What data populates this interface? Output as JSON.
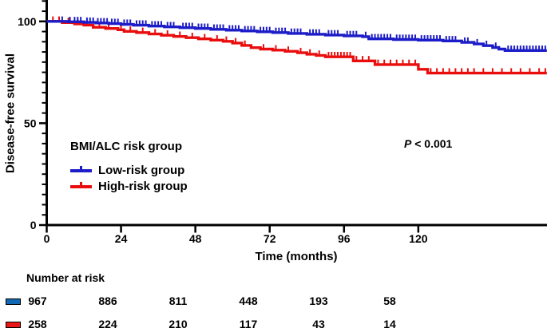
{
  "chart_data": {
    "type": "line",
    "subtype": "kaplan-meier-step",
    "step_mode": "post",
    "title": "",
    "xlabel": "Time (months)",
    "ylabel": "Disease-free survival",
    "xlim": [
      0,
      161.5
    ],
    "ylim": [
      0,
      110
    ],
    "x_ticks": [
      0,
      24,
      48,
      72,
      96,
      120
    ],
    "y_ticks": [
      0,
      50,
      100
    ],
    "y_minor_tick_step": 5,
    "grid": false,
    "legend_title": "BMI/ALC risk group",
    "legend_position": "inside-lower-left",
    "p_label": {
      "italic": "P",
      "text": " < 0.001"
    },
    "series": [
      {
        "name": "Low-risk group",
        "color": "#1c1cc8",
        "steps": [
          [
            0,
            100
          ],
          [
            7,
            99.8
          ],
          [
            12,
            99.5
          ],
          [
            16,
            99.2
          ],
          [
            20,
            98.9
          ],
          [
            24,
            98.5
          ],
          [
            28,
            98.1
          ],
          [
            33,
            97.7
          ],
          [
            38,
            97.3
          ],
          [
            43,
            96.9
          ],
          [
            48,
            96.5
          ],
          [
            53,
            96.1
          ],
          [
            58,
            95.7
          ],
          [
            63,
            95.3
          ],
          [
            68,
            94.9
          ],
          [
            73,
            94.5
          ],
          [
            78,
            94.1
          ],
          [
            84,
            93.7
          ],
          [
            90,
            93.3
          ],
          [
            96,
            92.9
          ],
          [
            102,
            92.5
          ],
          [
            104,
            91.4
          ],
          [
            112,
            91.1
          ],
          [
            120,
            90.8
          ],
          [
            128,
            90.4
          ],
          [
            134,
            89.7
          ],
          [
            138,
            88.9
          ],
          [
            141,
            88.1
          ],
          [
            144,
            87.2
          ],
          [
            146,
            86.4
          ],
          [
            148,
            85.7
          ]
        ],
        "censor_times": [
          5,
          7.5,
          9,
          10,
          11,
          13,
          14,
          15,
          16.5,
          17.5,
          18.5,
          19.5,
          21,
          22,
          23,
          25,
          26,
          27,
          29,
          30,
          31,
          32,
          34,
          35,
          36,
          37,
          39,
          40,
          41,
          44,
          45,
          46,
          47,
          49,
          50,
          51,
          52,
          54,
          55,
          56,
          57,
          59,
          60,
          61,
          62,
          64,
          65,
          66,
          67,
          69,
          70,
          71,
          72,
          74,
          75,
          76,
          77,
          79,
          80,
          81,
          82,
          85,
          86,
          87,
          88,
          91,
          92,
          93,
          94,
          97,
          98,
          99,
          100,
          103,
          105,
          106,
          107,
          108,
          109,
          110,
          111,
          113,
          114,
          115,
          116,
          117,
          118,
          119,
          121,
          122,
          123,
          124,
          125,
          126,
          127,
          129,
          130,
          131,
          132,
          135,
          136,
          139,
          142,
          145,
          149,
          150,
          151,
          152,
          153,
          154,
          155,
          156,
          157,
          158,
          159,
          160,
          161
        ]
      },
      {
        "name": "High-risk group",
        "color": "#e90d0d",
        "steps": [
          [
            0,
            100
          ],
          [
            5,
            99.4
          ],
          [
            9,
            98.8
          ],
          [
            12,
            98.2
          ],
          [
            15,
            97.1
          ],
          [
            19,
            96.5
          ],
          [
            23,
            95.9
          ],
          [
            25,
            95.1
          ],
          [
            29,
            94.5
          ],
          [
            33,
            93.8
          ],
          [
            37,
            93.2
          ],
          [
            41,
            92.6
          ],
          [
            45,
            92.0
          ],
          [
            49,
            91.4
          ],
          [
            53,
            90.8
          ],
          [
            57,
            90.2
          ],
          [
            60,
            89.4
          ],
          [
            63,
            88.2
          ],
          [
            66,
            87.1
          ],
          [
            69,
            86.4
          ],
          [
            73,
            85.9
          ],
          [
            77,
            85.3
          ],
          [
            81,
            84.6
          ],
          [
            84,
            83.9
          ],
          [
            87,
            83.3
          ],
          [
            90,
            82.6
          ],
          [
            99,
            80.6
          ],
          [
            106,
            78.8
          ],
          [
            120,
            76.5
          ],
          [
            123,
            74.6
          ]
        ],
        "censor_times": [
          2,
          4,
          7,
          10,
          13,
          17,
          20,
          24,
          27,
          31,
          35,
          39,
          43,
          47,
          51,
          55,
          58,
          61,
          64,
          70,
          74,
          78,
          82,
          85,
          88,
          91,
          92,
          93,
          94,
          95,
          96,
          97,
          98,
          100,
          102,
          104,
          107,
          109,
          111,
          113,
          115,
          117,
          119,
          124,
          126,
          128,
          130,
          132,
          134,
          136,
          138,
          141,
          144,
          147,
          150,
          153,
          156,
          159,
          161
        ]
      }
    ],
    "number_at_risk": {
      "header": "Number at risk",
      "times": [
        0,
        24,
        48,
        72,
        96,
        120
      ],
      "rows": [
        {
          "group": "Low-risk group",
          "swatch_color": "#1268b2",
          "values": [
            967,
            886,
            811,
            448,
            193,
            58
          ]
        },
        {
          "group": "High-risk group",
          "swatch_color": "#e81616",
          "values": [
            258,
            224,
            210,
            117,
            43,
            14
          ]
        }
      ]
    }
  }
}
